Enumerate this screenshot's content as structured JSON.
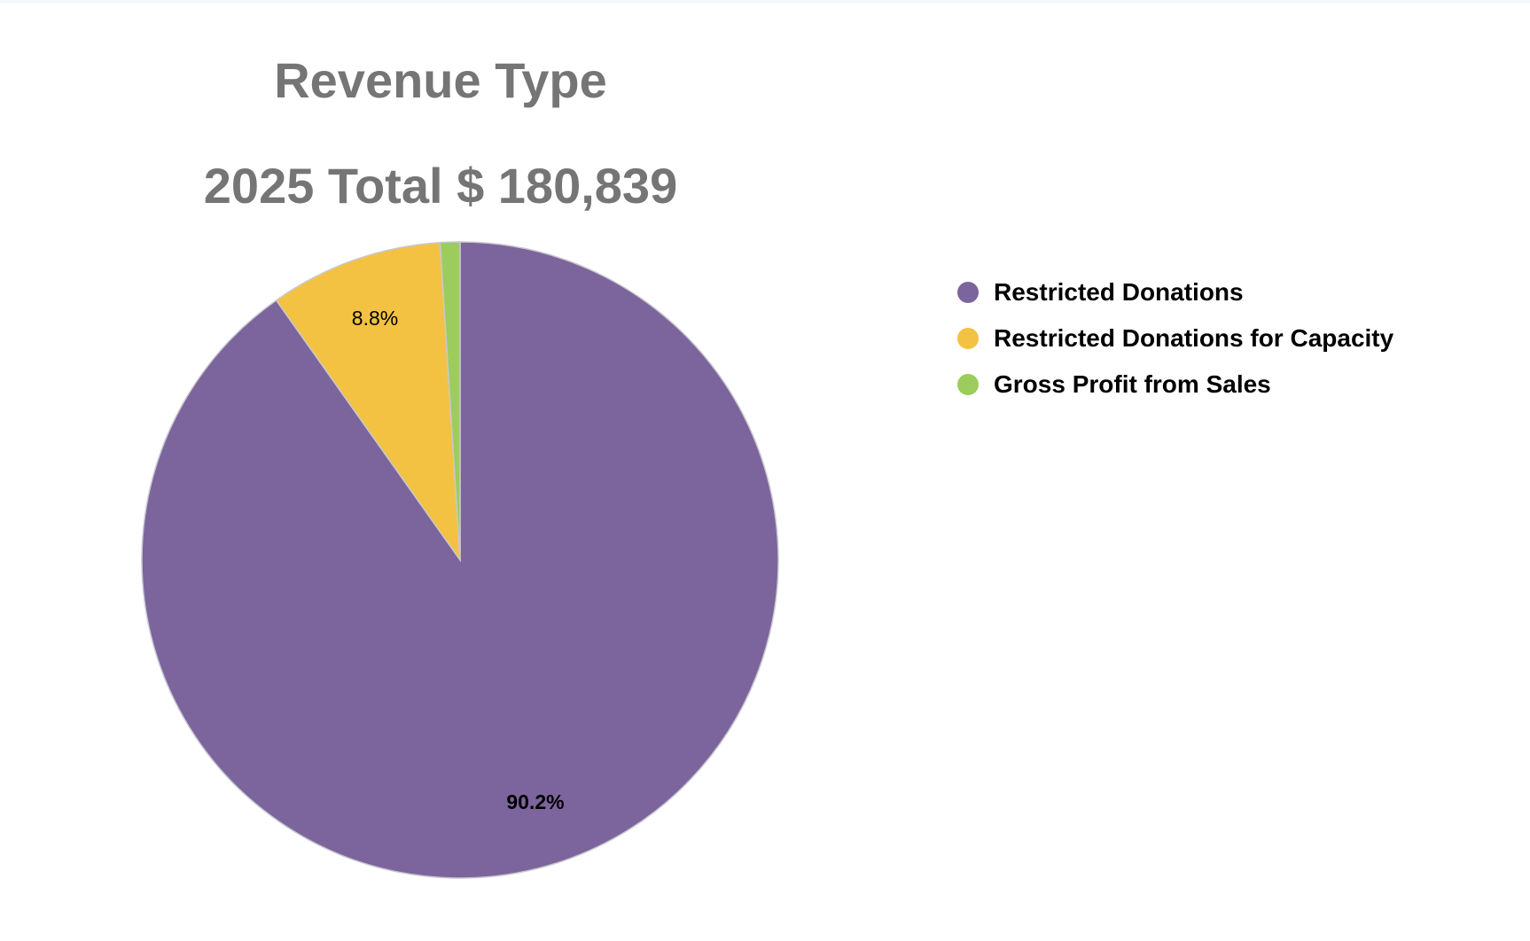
{
  "chart_data": {
    "type": "pie",
    "title": "Revenue Type",
    "subtitle": "2025  Total $ 180,839",
    "legend_position": "right",
    "slices": [
      {
        "name": "Restricted Donations",
        "percent": 90.2,
        "label": "90.2%",
        "color": "#7c659c"
      },
      {
        "name": "Restricted Donations for Capacity",
        "percent": 8.8,
        "label": "8.8%",
        "color": "#f4c242"
      },
      {
        "name": "Gross Profit from Sales",
        "percent": 1.0,
        "label": "",
        "color": "#9ccc5c"
      }
    ],
    "start_angle": "12 o'clock",
    "direction": "clockwise"
  }
}
